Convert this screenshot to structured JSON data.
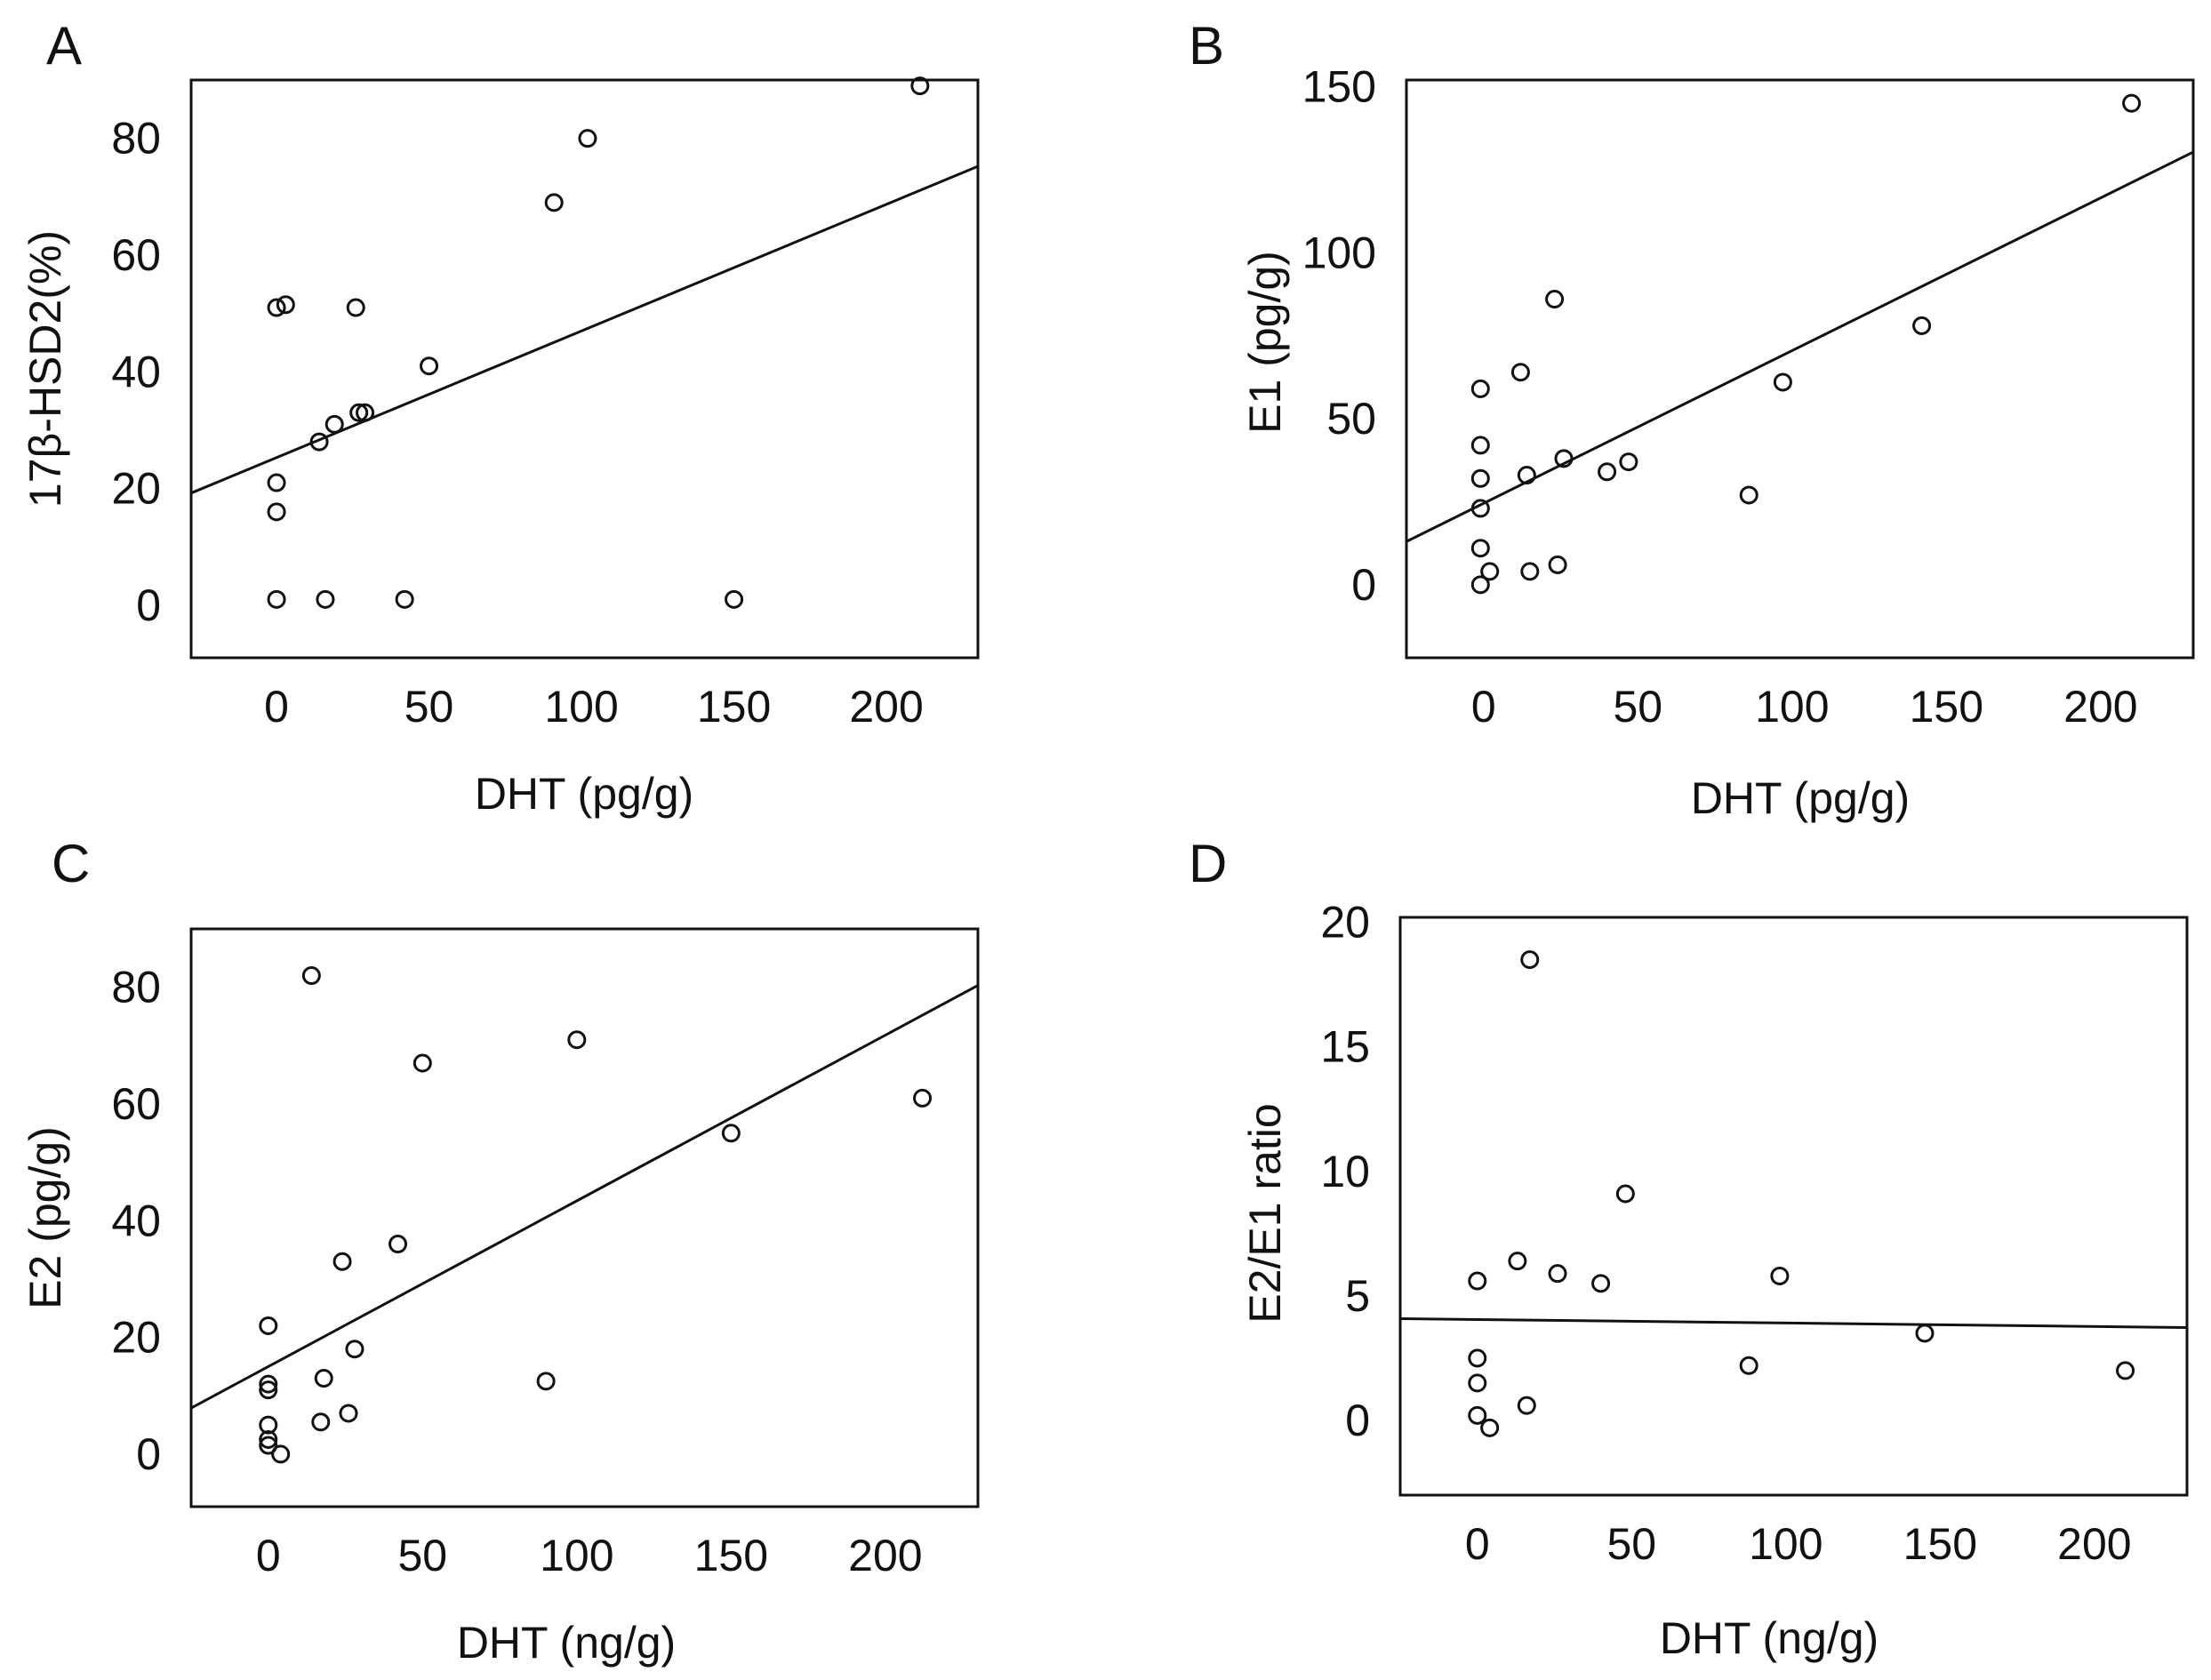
{
  "colors": {
    "ink": "#111111",
    "background": "#ffffff"
  },
  "chart_data": [
    {
      "id": "A",
      "panel_letter": "A",
      "type": "scatter",
      "title": "",
      "xlabel": "DHT (pg/g)",
      "ylabel": "17β-HSD2(%)",
      "xlim": [
        -28,
        230
      ],
      "ylim": [
        -9,
        90
      ],
      "x_ticks": [
        0,
        50,
        100,
        150,
        200
      ],
      "y_ticks": [
        0,
        20,
        40,
        60,
        80
      ],
      "x_tick_labels": [
        "0",
        "50",
        "100",
        "150",
        "200"
      ],
      "y_tick_labels": [
        "0",
        "20",
        "40",
        "60",
        "80"
      ],
      "grid": false,
      "points": [
        {
          "x": 0,
          "y": 51
        },
        {
          "x": 3,
          "y": 51.5
        },
        {
          "x": 26,
          "y": 51
        },
        {
          "x": 50,
          "y": 41
        },
        {
          "x": 91,
          "y": 69
        },
        {
          "x": 102,
          "y": 80
        },
        {
          "x": 211,
          "y": 89
        },
        {
          "x": 14,
          "y": 28
        },
        {
          "x": 19,
          "y": 31
        },
        {
          "x": 27,
          "y": 33
        },
        {
          "x": 29,
          "y": 33
        },
        {
          "x": 0,
          "y": 21
        },
        {
          "x": 0,
          "y": 16
        },
        {
          "x": 0,
          "y": 1
        },
        {
          "x": 16,
          "y": 1
        },
        {
          "x": 42,
          "y": 1
        },
        {
          "x": 150,
          "y": 1
        }
      ],
      "regression": {
        "intercept": 25.3,
        "slope": 0.217
      }
    },
    {
      "id": "B",
      "panel_letter": "B",
      "type": "scatter",
      "title": "",
      "xlabel": "DHT (pg/g)",
      "ylabel": "E1 (pg/g)",
      "xlim": [
        -25,
        230
      ],
      "ylim": [
        -22,
        152
      ],
      "x_ticks": [
        0,
        50,
        100,
        150,
        200
      ],
      "y_ticks": [
        0,
        50,
        100,
        150
      ],
      "x_tick_labels": [
        "0",
        "50",
        "100",
        "150",
        "200"
      ],
      "y_tick_labels": [
        "0",
        "50",
        "100",
        "150"
      ],
      "grid": false,
      "points": [
        {
          "x": 210,
          "y": 145
        },
        {
          "x": 23,
          "y": 86
        },
        {
          "x": 142,
          "y": 78
        },
        {
          "x": 12,
          "y": 64
        },
        {
          "x": 97,
          "y": 61
        },
        {
          "x": -1,
          "y": 59
        },
        {
          "x": -1,
          "y": 42
        },
        {
          "x": -1,
          "y": 32
        },
        {
          "x": 14,
          "y": 33
        },
        {
          "x": 26,
          "y": 38
        },
        {
          "x": 40,
          "y": 34
        },
        {
          "x": 47,
          "y": 37
        },
        {
          "x": 86,
          "y": 27
        },
        {
          "x": -1,
          "y": 23
        },
        {
          "x": -1,
          "y": 11
        },
        {
          "x": 2,
          "y": 4
        },
        {
          "x": 15,
          "y": 4
        },
        {
          "x": 24,
          "y": 6
        },
        {
          "x": -1,
          "y": 0
        }
      ],
      "regression": {
        "intercept": 24.5,
        "slope": 0.46
      }
    },
    {
      "id": "C",
      "panel_letter": "C",
      "type": "scatter",
      "title": "",
      "xlabel": "DHT (ng/g)",
      "ylabel": "E2 (pg/g)",
      "xlim": [
        -25,
        230
      ],
      "ylim": [
        -9,
        90
      ],
      "x_ticks": [
        0,
        50,
        100,
        150,
        200
      ],
      "y_ticks": [
        0,
        20,
        40,
        60,
        80
      ],
      "x_tick_labels": [
        "0",
        "50",
        "100",
        "150",
        "200"
      ],
      "y_tick_labels": [
        "0",
        "20",
        "40",
        "60",
        "80"
      ],
      "grid": false,
      "points": [
        {
          "x": 14,
          "y": 82
        },
        {
          "x": 50,
          "y": 67
        },
        {
          "x": 100,
          "y": 71
        },
        {
          "x": 212,
          "y": 61
        },
        {
          "x": 150,
          "y": 55
        },
        {
          "x": 42,
          "y": 36
        },
        {
          "x": 24,
          "y": 33
        },
        {
          "x": 0,
          "y": 22
        },
        {
          "x": 28,
          "y": 18
        },
        {
          "x": 0,
          "y": 12
        },
        {
          "x": 0,
          "y": 11
        },
        {
          "x": 18,
          "y": 13
        },
        {
          "x": 90,
          "y": 12.5
        },
        {
          "x": 0,
          "y": 5
        },
        {
          "x": 17,
          "y": 5.5
        },
        {
          "x": 26,
          "y": 7
        },
        {
          "x": 0,
          "y": 2.5
        },
        {
          "x": 0,
          "y": 1.5
        },
        {
          "x": 4,
          "y": 0
        }
      ],
      "regression": {
        "intercept": 15,
        "slope": 0.284
      }
    },
    {
      "id": "D",
      "panel_letter": "D",
      "type": "scatter",
      "title": "",
      "xlabel": "DHT (ng/g)",
      "ylabel": "E2/E1 ratio",
      "xlim": [
        -25,
        230
      ],
      "ylim": [
        -3,
        20.2
      ],
      "x_ticks": [
        0,
        50,
        100,
        150,
        200
      ],
      "y_ticks": [
        0,
        5,
        10,
        15,
        20
      ],
      "x_tick_labels": [
        "0",
        "50",
        "100",
        "150",
        "200"
      ],
      "y_tick_labels": [
        "0",
        "5",
        "10",
        "15",
        "20"
      ],
      "grid": false,
      "points": [
        {
          "x": 17,
          "y": 18.5
        },
        {
          "x": 48,
          "y": 9.1
        },
        {
          "x": 13,
          "y": 6.4
        },
        {
          "x": 26,
          "y": 5.9
        },
        {
          "x": 0,
          "y": 5.6
        },
        {
          "x": 40,
          "y": 5.5
        },
        {
          "x": 98,
          "y": 5.8
        },
        {
          "x": 145,
          "y": 3.5
        },
        {
          "x": 0,
          "y": 2.5
        },
        {
          "x": 88,
          "y": 2.2
        },
        {
          "x": 0,
          "y": 1.5
        },
        {
          "x": 210,
          "y": 2.0
        },
        {
          "x": 16,
          "y": 0.6
        },
        {
          "x": 0,
          "y": 0.2
        },
        {
          "x": 4,
          "y": -0.3
        }
      ],
      "regression": {
        "intercept": 4.05,
        "slope": -0.0014
      }
    }
  ]
}
